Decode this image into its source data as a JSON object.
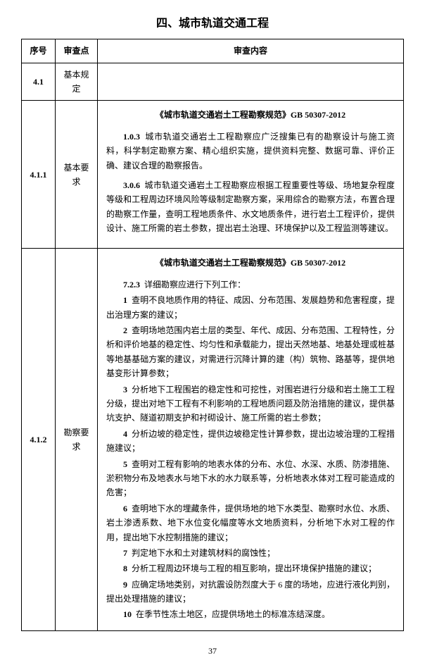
{
  "sectionTitle": "四、城市轨道交通工程",
  "headers": {
    "num": "序号",
    "point": "审查点",
    "content": "审查内容"
  },
  "rows": [
    {
      "num": "4.1",
      "point": "基本规定",
      "content": ""
    },
    {
      "num": "4.1.1",
      "point": "基本要求",
      "specTitle": "《城市轨道交通岩土工程勘察规范》GB 50307-2012",
      "paras": [
        {
          "code": "1.0.3",
          "text": "城市轨道交通岩土工程勘察应广泛搜集已有的勘察设计与施工资料，科学制定勘察方案、精心组织实施，提供资料完整、数据可靠、评价正确、建议合理的勘察报告。"
        },
        {
          "code": "3.0.6",
          "text": "城市轨道交通岩土工程勘察应根据工程重要性等级、场地复杂程度等级和工程周边环境风险等级制定勘察方案，采用综合的勘察方法，布置合理的勘察工作量，查明工程地质条件、水文地质条件，进行岩土工程评价，提供设计、施工所需的岩土参数，提出岩土治理、环境保护以及工程监测等建议。"
        }
      ]
    },
    {
      "num": "4.1.2",
      "point": "勘察要求",
      "specTitle": "《城市轨道交通岩土工程勘察规范》GB 50307-2012",
      "headCode": "7.2.3",
      "headText": "详细勘察应进行下列工作：",
      "items": [
        {
          "n": "1",
          "t": "查明不良地质作用的特征、成因、分布范围、发展趋势和危害程度，提出治理方案的建议；"
        },
        {
          "n": "2",
          "t": "查明场地范围内岩土层的类型、年代、成因、分布范围、工程特性，分析和评价地基的稳定性、均匀性和承载能力，提出天然地基、地基处理或桩基等地基基础方案的建议，对需进行沉降计算的建（构）筑物、路基等，提供地基变形计算参数；"
        },
        {
          "n": "3",
          "t": "分析地下工程围岩的稳定性和可挖性，对围岩进行分级和岩土施工工程分级，提出对地下工程有不利影响的工程地质问题及防治措施的建议，提供基坑支护、隧道初期支护和衬砌设计、施工所需的岩土参数；"
        },
        {
          "n": "4",
          "t": "分析边坡的稳定性，提供边坡稳定性计算参数，提出边坡治理的工程措施建议；"
        },
        {
          "n": "5",
          "t": "查明对工程有影响的地表水体的分布、水位、水深、水质、防渗措施、淤积物分布及地表水与地下水的水力联系等，分析地表水体对工程可能造成的危害；"
        },
        {
          "n": "6",
          "t": "查明地下水的埋藏条件，提供场地的地下水类型、勘察时水位、水质、岩土渗透系数、地下水位变化幅度等水文地质资料，分析地下水对工程的作用，提出地下水控制措施的建议；"
        },
        {
          "n": "7",
          "t": "判定地下水和土对建筑材料的腐蚀性；"
        },
        {
          "n": "8",
          "t": "分析工程周边环境与工程的相互影响，提出环境保护措施的建议；"
        },
        {
          "n": "9",
          "t": "应确定场地类别，对抗震设防烈度大于 6 度的场地，应进行液化判别，提出处理措施的建议；"
        },
        {
          "n": "10",
          "t": "在季节性冻土地区，应提供场地土的标准冻结深度。"
        }
      ]
    }
  ],
  "pageNumber": "37"
}
